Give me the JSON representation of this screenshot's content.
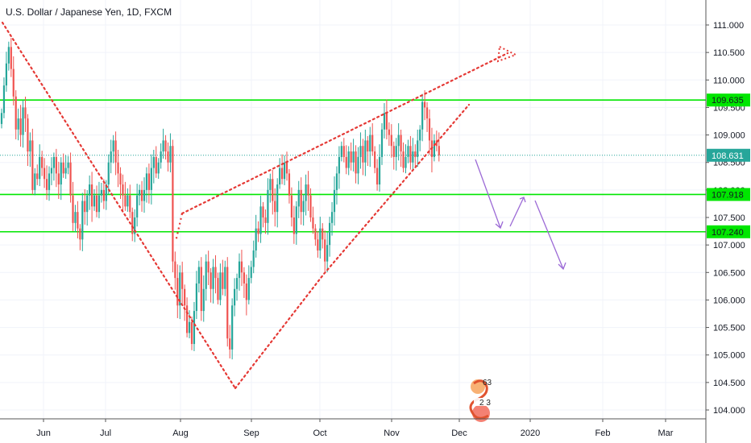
{
  "chart_data": {
    "type": "candlestick",
    "title": "U.S. Dollar / Japanese Yen, 1D, FXCM",
    "x_ticks": [
      "Jun",
      "Jul",
      "Aug",
      "Sep",
      "Oct",
      "Nov",
      "Dec",
      "2020",
      "Feb",
      "Mar"
    ],
    "y_ticks": [
      "111.000",
      "110.500",
      "110.000",
      "109.500",
      "109.000",
      "108.500",
      "108.000",
      "107.500",
      "107.000",
      "106.500",
      "106.000",
      "105.500",
      "105.000",
      "104.500",
      "104.000"
    ],
    "ylim": [
      103.95,
      111.2
    ],
    "last_price": "108.631",
    "levels": [
      {
        "value": 109.635,
        "label": "109.635",
        "color": "#00e600"
      },
      {
        "value": 107.918,
        "label": "107.918",
        "color": "#00e600"
      },
      {
        "value": 107.24,
        "label": "107.240",
        "color": "#00e600"
      }
    ],
    "closes": [
      109.4,
      109.9,
      110.3,
      110.6,
      110.2,
      109.7,
      109.1,
      109.3,
      109.0,
      109.5,
      109.3,
      108.7,
      108.9,
      108.0,
      108.3,
      108.2,
      108.6,
      108.4,
      108.2,
      108.0,
      108.3,
      108.4,
      108.6,
      108.3,
      108.1,
      108.5,
      108.3,
      108.4,
      108.5,
      107.9,
      107.4,
      107.6,
      107.3,
      107.1,
      107.8,
      107.6,
      107.9,
      108.1,
      107.7,
      107.9,
      107.6,
      107.9,
      108.0,
      107.8,
      108.1,
      108.5,
      108.7,
      108.9,
      108.5,
      108.3,
      108.1,
      107.9,
      107.7,
      107.9,
      107.6,
      107.2,
      107.5,
      107.9,
      108.0,
      107.8,
      108.0,
      108.3,
      108.0,
      108.4,
      108.6,
      108.3,
      108.5,
      108.7,
      108.9,
      108.7,
      108.5,
      108.8,
      106.7,
      106.4,
      105.9,
      106.5,
      106.2,
      105.9,
      105.4,
      105.6,
      105.2,
      105.8,
      106.3,
      106.6,
      105.8,
      106.2,
      106.7,
      106.5,
      106.2,
      106.6,
      106.4,
      106.0,
      106.5,
      106.2,
      106.6,
      105.3,
      105.1,
      105.9,
      106.2,
      106.4,
      106.7,
      106.5,
      106.3,
      106.0,
      106.4,
      106.6,
      106.9,
      107.3,
      107.2,
      107.7,
      107.5,
      107.4,
      108.0,
      108.2,
      107.8,
      107.6,
      108.1,
      108.4,
      108.2,
      108.5,
      108.3,
      107.9,
      107.5,
      107.2,
      107.7,
      108.0,
      107.6,
      107.8,
      108.1,
      107.9,
      107.5,
      107.3,
      107.1,
      106.9,
      107.3,
      107.1,
      106.7,
      107.0,
      107.4,
      107.6,
      108.0,
      108.3,
      108.6,
      108.8,
      108.6,
      108.4,
      108.7,
      108.5,
      108.7,
      108.3,
      108.6,
      108.8,
      108.5,
      108.9,
      108.7,
      109.0,
      108.7,
      108.4,
      108.1,
      108.6,
      109.1,
      109.4,
      109.1,
      109.0,
      108.8,
      108.6,
      108.8,
      109.0,
      108.7,
      108.4,
      108.6,
      108.8,
      108.5,
      108.7,
      108.6,
      108.9,
      109.1,
      109.6,
      109.5,
      109.3,
      108.9,
      108.6,
      108.9,
      108.8,
      108.631
    ]
  }
}
